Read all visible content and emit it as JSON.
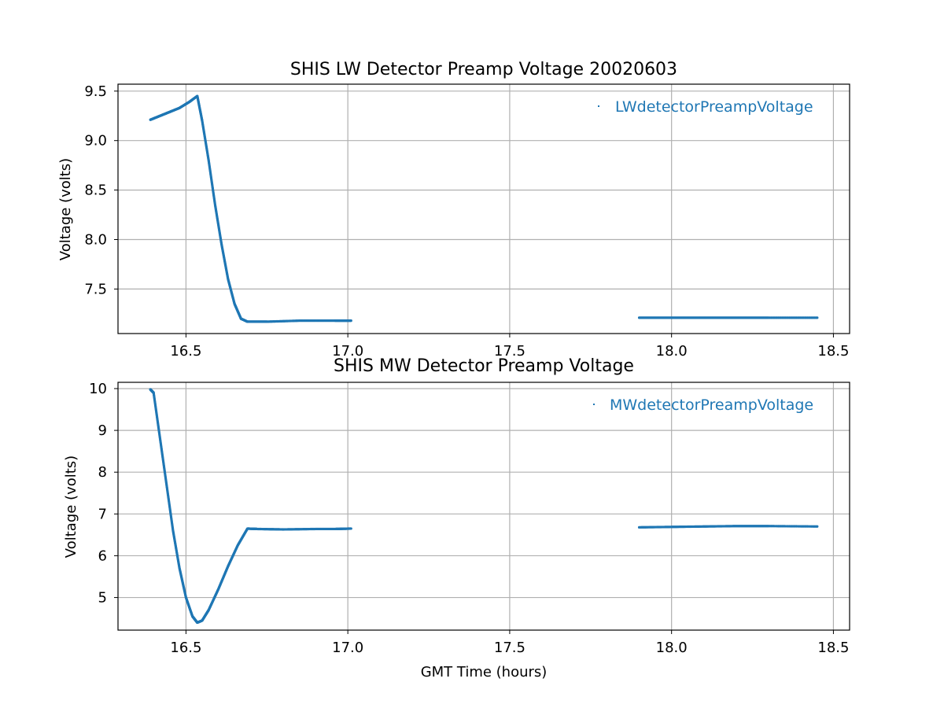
{
  "series_color": "#1f77b4",
  "chart_data": [
    {
      "type": "scatter",
      "title": "SHIS LW Detector Preamp Voltage 20020603",
      "xlabel": "",
      "ylabel": "Voltage (volts)",
      "xlim": [
        16.29,
        18.55
      ],
      "ylim": [
        7.05,
        9.57
      ],
      "xticks": [
        16.5,
        17.0,
        17.5,
        18.0,
        18.5
      ],
      "xtick_labels": [
        "16.5",
        "17.0",
        "17.5",
        "18.0",
        "18.5"
      ],
      "yticks": [
        7.5,
        8.0,
        8.5,
        9.0,
        9.5
      ],
      "ytick_labels": [
        "7.5",
        "8.0",
        "8.5",
        "9.0",
        "9.5"
      ],
      "grid": true,
      "legend_position": "top-right",
      "series": [
        {
          "name": "LWdetectorPreampVoltage",
          "points": [
            [
              16.39,
              9.21
            ],
            [
              16.42,
              9.25
            ],
            [
              16.45,
              9.29
            ],
            [
              16.48,
              9.33
            ],
            [
              16.51,
              9.39
            ],
            [
              16.535,
              9.45
            ],
            [
              16.55,
              9.2
            ],
            [
              16.57,
              8.8
            ],
            [
              16.59,
              8.35
            ],
            [
              16.61,
              7.95
            ],
            [
              16.63,
              7.6
            ],
            [
              16.65,
              7.35
            ],
            [
              16.67,
              7.2
            ],
            [
              16.69,
              7.17
            ],
            [
              16.75,
              7.17
            ],
            [
              16.85,
              7.18
            ],
            [
              16.96,
              7.18
            ],
            [
              17.01,
              7.18
            ],
            [
              17.9,
              7.21
            ],
            [
              18.0,
              7.21
            ],
            [
              18.1,
              7.21
            ],
            [
              18.2,
              7.21
            ],
            [
              18.3,
              7.21
            ],
            [
              18.45,
              7.21
            ]
          ]
        }
      ]
    },
    {
      "type": "scatter",
      "title": "SHIS MW Detector Preamp Voltage",
      "xlabel": "GMT Time (hours)",
      "ylabel": "Voltage (volts)",
      "xlim": [
        16.29,
        18.55
      ],
      "ylim": [
        4.22,
        10.15
      ],
      "xticks": [
        16.5,
        17.0,
        17.5,
        18.0,
        18.5
      ],
      "xtick_labels": [
        "16.5",
        "17.0",
        "17.5",
        "18.0",
        "18.5"
      ],
      "yticks": [
        5,
        6,
        7,
        8,
        9,
        10
      ],
      "ytick_labels": [
        "5",
        "6",
        "7",
        "8",
        "9",
        "10"
      ],
      "grid": true,
      "legend_position": "top-right",
      "series": [
        {
          "name": "MWdetectorPreampVoltage",
          "points": [
            [
              16.39,
              9.98
            ],
            [
              16.4,
              9.9
            ],
            [
              16.42,
              8.8
            ],
            [
              16.44,
              7.7
            ],
            [
              16.46,
              6.6
            ],
            [
              16.48,
              5.7
            ],
            [
              16.5,
              5.0
            ],
            [
              16.52,
              4.55
            ],
            [
              16.535,
              4.4
            ],
            [
              16.55,
              4.45
            ],
            [
              16.57,
              4.7
            ],
            [
              16.6,
              5.2
            ],
            [
              16.63,
              5.75
            ],
            [
              16.66,
              6.25
            ],
            [
              16.69,
              6.65
            ],
            [
              16.72,
              6.64
            ],
            [
              16.8,
              6.63
            ],
            [
              16.9,
              6.64
            ],
            [
              16.96,
              6.64
            ],
            [
              17.01,
              6.65
            ],
            [
              17.9,
              6.68
            ],
            [
              18.0,
              6.69
            ],
            [
              18.1,
              6.7
            ],
            [
              18.2,
              6.71
            ],
            [
              18.3,
              6.71
            ],
            [
              18.45,
              6.7
            ]
          ]
        }
      ]
    }
  ]
}
